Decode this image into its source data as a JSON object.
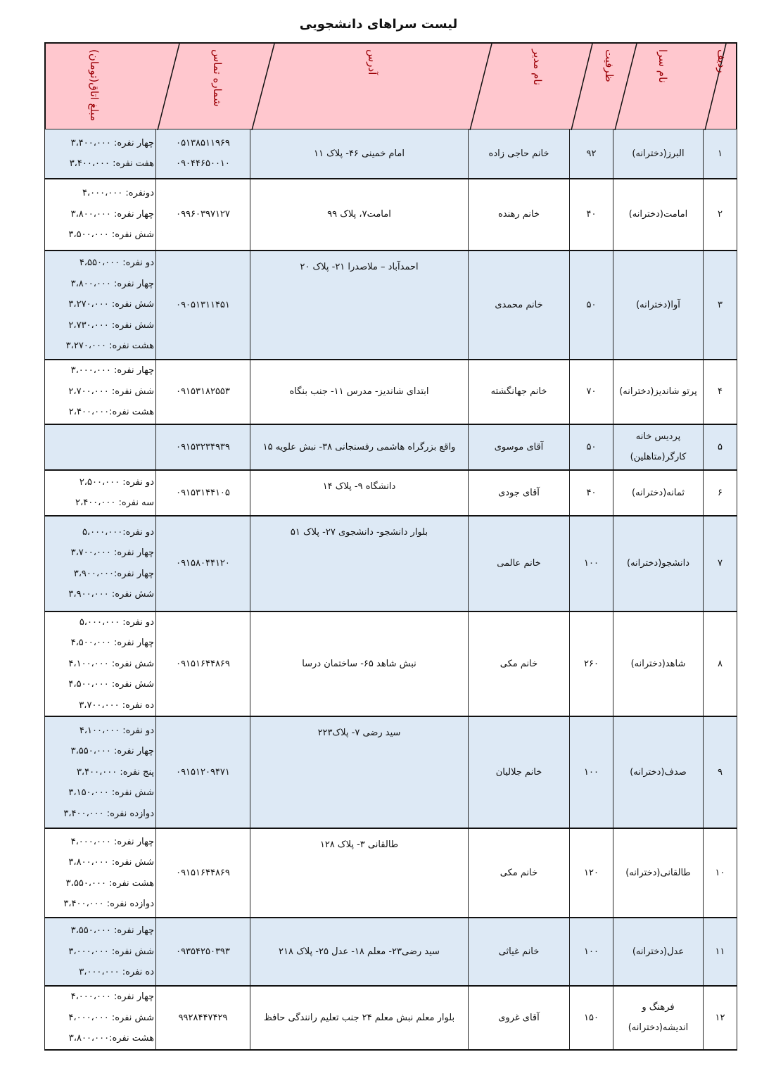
{
  "title": "لیست سراهای دانشجویی",
  "colors": {
    "header_bg": "#ffc7ce",
    "header_text": "#9c0006",
    "alt_row_bg": "#dde9f5"
  },
  "headers": [
    "ردیف",
    "نام سرا",
    "ظرفیت",
    "نام مدیر",
    "آدرس",
    "شماره تماس",
    "مبلغ اتاق(تومان)"
  ],
  "rows": [
    {
      "no": "۱",
      "name": "البرز(دخترانه)",
      "capacity": "۹۲",
      "manager": "خانم حاجی زاده",
      "address": "امام خمینی ۴۶- پلاک ۱۱",
      "phones": [
        "۰۵۱۳۸۵۱۱۹۶۹",
        "۰۹۰۴۴۶۵۰۰۱۰"
      ],
      "prices": [
        "چهار نفره: ۳،۴۰۰،۰۰۰",
        "هفت نفره: ۳،۴۰۰،۰۰۰"
      ]
    },
    {
      "no": "۲",
      "name": "امامت(دخترانه)",
      "capacity": "۴۰",
      "manager": "خانم رهنده",
      "address": "امامت۷، پلاک ۹۹",
      "phones": [
        "۰۹۹۶۰۳۹۷۱۲۷"
      ],
      "prices": [
        "دونفره: ۴،۰۰۰،۰۰۰",
        "چهار نفره: ۳،۸۰۰،۰۰۰",
        "شش نفره: ۳،۵۰۰،۰۰۰"
      ]
    },
    {
      "no": "۳",
      "name": "آوا(دخترانه)",
      "capacity": "۵۰",
      "manager": "خانم محمدی",
      "address": "احمدآباد – ملاصدرا ۲۱- پلاک ۲۰",
      "phones": [
        "۰۹۰۵۱۳۱۱۴۵۱"
      ],
      "prices": [
        "دو نفره: ۴،۵۵۰،۰۰۰",
        "چهار نفره: ۳،۸۰۰،۰۰۰",
        "شش نفره: ۳،۲۷۰،۰۰۰",
        "شش نفره: ۲،۷۳۰،۰۰۰",
        "هشت نفره: ۳،۲۷۰،۰۰۰"
      ]
    },
    {
      "no": "۴",
      "name": "پرتو شاندیز(دخترانه)",
      "capacity": "۷۰",
      "manager": "خانم جهانگشته",
      "address": "ابتدای شاندیز- مدرس ۱۱- جنب بنگاه",
      "phones": [
        "۰۹۱۵۳۱۸۲۵۵۳"
      ],
      "prices": [
        "چهار نفره: ۳،۰۰۰،۰۰۰",
        "شش نفره: ۲،۷۰۰،۰۰۰",
        "هشت نفره:۲،۴۰۰،۰۰۰"
      ]
    },
    {
      "no": "۵",
      "name": "پردیس خانه کارگر(متاهلین)",
      "capacity": "۵۰",
      "manager": "آقای موسوی",
      "address": "واقع بزرگراه هاشمی رفسنجانی ۳۸- نبش علویه ۱۵",
      "phones": [
        "۰۹۱۵۳۲۳۴۹۳۹"
      ],
      "prices": []
    },
    {
      "no": "۶",
      "name": "ثمانه(دخترانه)",
      "capacity": "۴۰",
      "manager": "آقای جودی",
      "address": "دانشگاه ۹- پلاک ۱۴",
      "phones": [
        "۰۹۱۵۳۱۴۴۱۰۵"
      ],
      "prices": [
        "دو نفره: ۲،۵۰۰،۰۰۰",
        "سه نفره: ۲،۴۰۰،۰۰۰"
      ]
    },
    {
      "no": "۷",
      "name": "دانشجو(دخترانه)",
      "capacity": "۱۰۰",
      "manager": "خانم  عالمی",
      "address": "بلوار دانشجو- دانشجوی ۲۷- پلاک ۵۱",
      "phones": [
        "۰۹۱۵۸۰۴۴۱۲۰"
      ],
      "prices": [
        "دو نفره:۵،۰۰۰،۰۰۰",
        "چهار نفره: ۳،۷۰۰،۰۰۰",
        "چهار نفره:۳،۹۰۰،۰۰۰",
        "شش نفره: ۳،۹۰۰،۰۰۰"
      ]
    },
    {
      "no": "۸",
      "name": "شاهد(دخترانه)",
      "capacity": "۲۶۰",
      "manager": "خانم مکی",
      "address": "نبش شاهد ۶۵- ساختمان درسا",
      "phones": [
        "۰۹۱۵۱۶۴۴۸۶۹"
      ],
      "prices": [
        "دو نفره: ۵،۰۰۰،۰۰۰",
        "چهار نفره: ۴،۵۰۰،۰۰۰",
        "شش نفره: ۴،۱۰۰،۰۰۰",
        "شش نفره: ۴،۵۰۰،۰۰۰",
        "ده نفره: ۳،۷۰۰،۰۰۰"
      ]
    },
    {
      "no": "۹",
      "name": "صدف(دخترانه)",
      "capacity": "۱۰۰",
      "manager": "خانم جلالیان",
      "address": "سید رضی ۷- پلاک۲۲۳",
      "phones": [
        "۰۹۱۵۱۲۰۹۴۷۱"
      ],
      "prices": [
        "دو نفره: ۴،۱۰۰،۰۰۰",
        "چهار نفره: ۳،۵۵۰،۰۰۰",
        "پنج نفره: ۳،۴۰۰،۰۰۰",
        "شش نفره: ۳،۱۵۰،۰۰۰",
        "دوازده نفره: ۳،۴۰۰،۰۰۰"
      ]
    },
    {
      "no": "۱۰",
      "name": "طالقانی(دخترانه)",
      "capacity": "۱۲۰",
      "manager": "خانم  مکی",
      "address": "طالقانی ۳- پلاک ۱۲۸",
      "phones": [
        "۰۹۱۵۱۶۴۴۸۶۹"
      ],
      "prices": [
        "چهار نفره: ۴،۰۰۰،۰۰۰",
        "شش نفره: ۳،۸۰۰،۰۰۰",
        "هشت نفره: ۳،۵۵۰،۰۰۰",
        "دوازده نفره: ۳،۴۰۰،۰۰۰"
      ]
    },
    {
      "no": "۱۱",
      "name": "عدل(دخترانه)",
      "capacity": "۱۰۰",
      "manager": "خانم غیاثی",
      "address": "سید رضی۲۳- معلم ۱۸- عدل ۲۵- پلاک ۲۱۸",
      "phones": [
        "۰۹۳۵۴۲۵۰۳۹۳"
      ],
      "prices": [
        "چهار نفره: ۳،۵۵۰،۰۰۰",
        "شش نفره: ۳،۰۰۰،۰۰۰",
        "ده نفره: ۳،۰۰۰،۰۰۰"
      ]
    },
    {
      "no": "۱۲",
      "name": "فرهنگ و اندیشه(دخترانه)",
      "capacity": "۱۵۰",
      "manager": "آقای غروی",
      "address": "بلوار معلم نبش معلم ۲۴ جنب تعلیم رانندگی حافظ",
      "phones": [
        "۹۹۲۸۴۴۷۴۲۹"
      ],
      "prices": [
        "چهار نفره: ۴،۰۰۰،۰۰۰",
        "شش نفره: ۴،۰۰۰،۰۰۰",
        "هشت نفره:۳،۸۰۰،۰۰۰"
      ]
    }
  ]
}
